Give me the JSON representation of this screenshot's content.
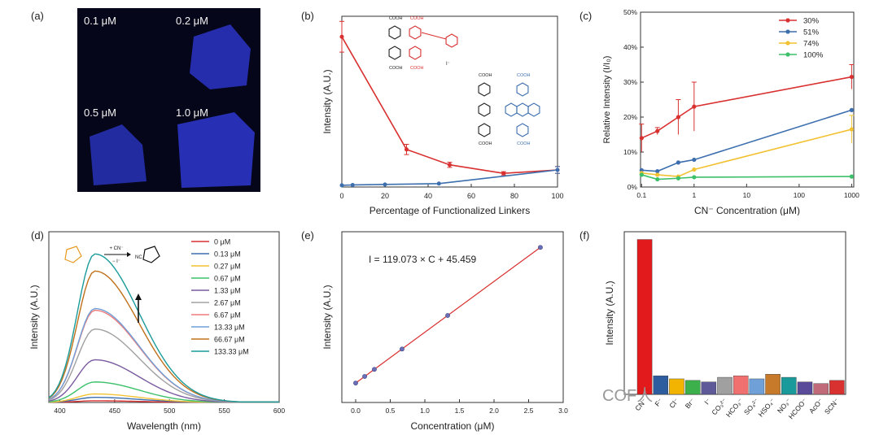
{
  "panel_labels": {
    "a": "(a)",
    "b": "(b)",
    "c": "(c)",
    "d": "(d)",
    "e": "(e)",
    "f": "(f)"
  },
  "panel_a": {
    "labels": [
      "0.1 μM",
      "0.2 μM",
      "0.5 μM",
      "1.0 μM"
    ]
  },
  "watermark": "COF人",
  "colors": {
    "red": "#d93030",
    "blue": "#3d6fae",
    "yellow": "#f2c232",
    "green": "#3cc06a"
  },
  "chart_data": [
    {
      "id": "b",
      "type": "line",
      "xlabel": "Percentage of Functionalized Linkers",
      "ylabel": "Intensity (A.U.)",
      "xticks": [
        0,
        20,
        40,
        60,
        80,
        100
      ],
      "xlim": [
        0,
        100
      ],
      "ylim": [
        0,
        100
      ],
      "structure_labels": [
        "COOH",
        "COOH",
        "COOH",
        "COOH",
        "COOH",
        "COOH",
        "COOH",
        "COOH",
        "I⁻"
      ],
      "series": [
        {
          "color": "#d93030",
          "x": [
            0,
            30,
            50,
            75,
            100
          ],
          "y": [
            88,
            22,
            13,
            8,
            10
          ],
          "err": [
            9,
            3,
            1.5,
            1,
            2
          ]
        },
        {
          "color": "#3d6fae",
          "x": [
            0,
            5,
            20,
            45,
            100
          ],
          "y": [
            1,
            1.2,
            1.5,
            2,
            10
          ],
          "err": [
            0,
            0,
            0,
            0,
            2
          ]
        }
      ]
    },
    {
      "id": "c",
      "type": "line",
      "xlabel": "CN⁻ Concentration (μM)",
      "ylabel": "Relative Intensity (I/I₀)",
      "xscale": "log",
      "xlim": [
        0.1,
        1000
      ],
      "xticks": [
        "0.1",
        "1",
        "10",
        "100",
        "1000"
      ],
      "ylim": [
        0,
        50
      ],
      "yticks": [
        "0%",
        "10%",
        "20%",
        "30%",
        "40%",
        "50%"
      ],
      "legend_position": "top-right",
      "series": [
        {
          "name": "30%",
          "color": "#d93030",
          "x": [
            0.1,
            0.2,
            0.5,
            1,
            1000
          ],
          "y": [
            14,
            16,
            20,
            23,
            31.5
          ],
          "err": [
            4,
            1,
            5,
            7,
            3.5
          ]
        },
        {
          "name": "51%",
          "color": "#3d6fae",
          "x": [
            0.1,
            0.2,
            0.5,
            1,
            1000
          ],
          "y": [
            4.8,
            4.5,
            7,
            7.8,
            22
          ],
          "err": [
            0,
            0,
            0,
            0,
            0
          ]
        },
        {
          "name": "74%",
          "color": "#f2c232",
          "x": [
            0.1,
            0.2,
            0.5,
            1,
            1000
          ],
          "y": [
            4,
            3.5,
            3,
            5,
            16.5
          ],
          "err": [
            0,
            0,
            0,
            0,
            4
          ]
        },
        {
          "name": "100%",
          "color": "#3cc06a",
          "x": [
            0.1,
            0.2,
            0.5,
            1,
            1000
          ],
          "y": [
            3.5,
            2.2,
            2.5,
            2.8,
            3
          ],
          "err": [
            0,
            0,
            0,
            0,
            0
          ]
        }
      ]
    },
    {
      "id": "d",
      "type": "line",
      "xlabel": "Wavelength (nm)",
      "ylabel": "Intensity (A.U.)",
      "xlim": [
        390,
        600
      ],
      "xticks": [
        400,
        450,
        500,
        550,
        600
      ],
      "ylim": [
        0,
        100
      ],
      "reaction_labels": {
        "reagent": "+ CN⁻",
        "byproduct": "− I⁻",
        "nc": "NC"
      },
      "series": [
        {
          "name": "0 μM",
          "color": "#d93030",
          "peak": 1
        },
        {
          "name": "0.13 μM",
          "color": "#3d6fae",
          "peak": 3
        },
        {
          "name": "0.27 μM",
          "color": "#f2c232",
          "peak": 5
        },
        {
          "name": "0.67 μM",
          "color": "#3cc06a",
          "peak": 12
        },
        {
          "name": "1.33 μM",
          "color": "#7a5aa0",
          "peak": 25
        },
        {
          "name": "2.67 μM",
          "color": "#a0a0a0",
          "peak": 43
        },
        {
          "name": "6.67 μM",
          "color": "#f07a7a",
          "peak": 54
        },
        {
          "name": "13.33 μM",
          "color": "#6fa0d8",
          "peak": 55
        },
        {
          "name": "66.67 μM",
          "color": "#c0701a",
          "peak": 77
        },
        {
          "name": "133.33 μM",
          "color": "#1a9a9a",
          "peak": 87
        }
      ]
    },
    {
      "id": "e",
      "type": "scatter",
      "xlabel": "Concentration (μM)",
      "ylabel": "Intensity (A.U.)",
      "equation": "I = 119.073 × C + 45.459",
      "xlim": [
        -0.2,
        3.0
      ],
      "xticks": [
        "0.0",
        "0.5",
        "1.0",
        "1.5",
        "2.0",
        "2.5",
        "3.0"
      ],
      "ylim": [
        0,
        400
      ],
      "points": {
        "x": [
          0,
          0.13,
          0.27,
          0.67,
          1.33,
          2.67
        ],
        "y": [
          45.5,
          61,
          77.6,
          125.2,
          203.8,
          363.4
        ]
      },
      "fit": {
        "slope": 119.073,
        "intercept": 45.459
      }
    },
    {
      "id": "f",
      "type": "bar",
      "ylabel": "Intensity (A.U.)",
      "categories": [
        "CN⁻",
        "F⁻",
        "Cl⁻",
        "Br⁻",
        "I⁻",
        "CO₃²⁻",
        "HCO₃⁻",
        "SO₄²⁻",
        "HSO₄⁻",
        "NO₃⁻",
        "HCOO⁻",
        "AcO⁻",
        "SCN⁻"
      ],
      "values": [
        100,
        12,
        10,
        9,
        8,
        11,
        12,
        10,
        13,
        11,
        8,
        7,
        9
      ],
      "colors": [
        "#e31a1c",
        "#2e5d9f",
        "#f2b400",
        "#3cb04a",
        "#5e5a9a",
        "#a0a0a0",
        "#f07070",
        "#6fa0d8",
        "#c67a2a",
        "#1a9a9a",
        "#5a4a9a",
        "#c06a7a",
        "#d93030"
      ]
    }
  ]
}
